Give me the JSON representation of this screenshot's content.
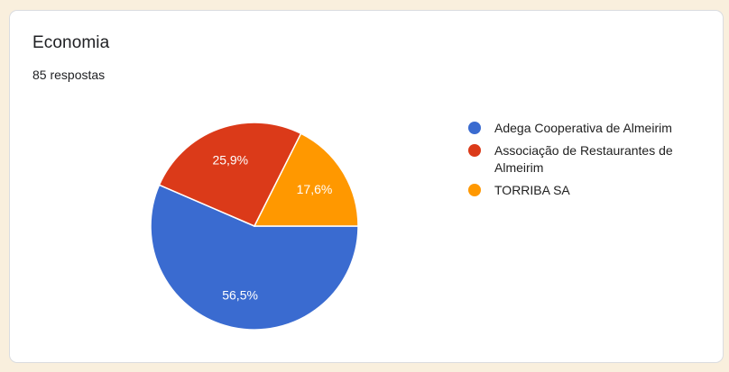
{
  "page": {
    "background_color": "#f9efdd"
  },
  "card": {
    "title": "Economia",
    "response_count": "85 respostas",
    "background_color": "#ffffff",
    "border_color": "#dadce0"
  },
  "chart_data": {
    "type": "pie",
    "title": "Economia",
    "subtitle": "85 respostas",
    "legend_position": "right",
    "start_angle": "0deg at 3 o'clock, clockwise",
    "label_color": "#ffffff",
    "slices": [
      {
        "label": "Adega Cooperativa de Almeirim",
        "percent": 56.5,
        "percent_label": "56,5%",
        "color": "#3a6bd0"
      },
      {
        "label": "Associação de Restaurantes de Almeirim",
        "percent": 25.9,
        "percent_label": "25,9%",
        "color": "#db3a19"
      },
      {
        "label": "TORRIBA SA",
        "percent": 17.6,
        "percent_label": "17,6%",
        "color": "#ff9800"
      }
    ]
  }
}
